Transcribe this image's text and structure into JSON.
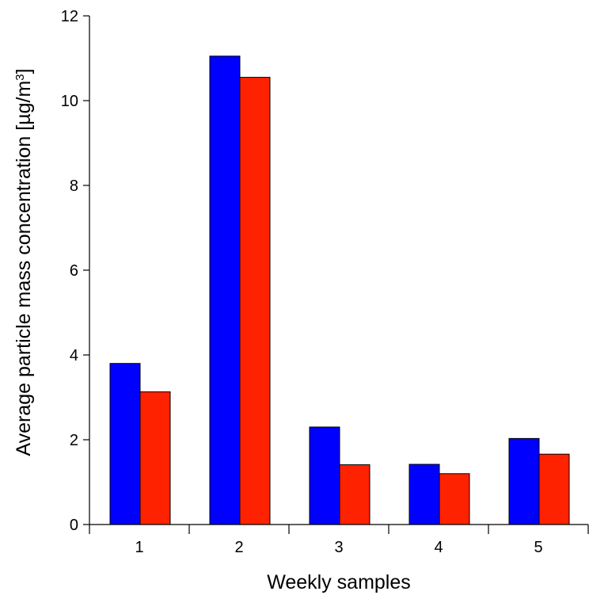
{
  "chart_data": {
    "type": "bar",
    "categories": [
      "1",
      "2",
      "3",
      "4",
      "5"
    ],
    "series": [
      {
        "color": "#0000ff",
        "values": [
          3.8,
          11.05,
          2.3,
          1.42,
          2.03
        ]
      },
      {
        "color": "#ff2200",
        "values": [
          3.13,
          10.55,
          1.41,
          1.2,
          1.66
        ]
      }
    ],
    "xlabel": "Weekly samples",
    "ylabel": {
      "main": "Average particle mass concentration [µg/m",
      "sup": "3",
      "close": "]"
    },
    "ylim": [
      0,
      12
    ],
    "yticks": [
      "0",
      "2",
      "4",
      "6",
      "8",
      "10",
      "12"
    ],
    "grid": false,
    "legend": "none"
  }
}
